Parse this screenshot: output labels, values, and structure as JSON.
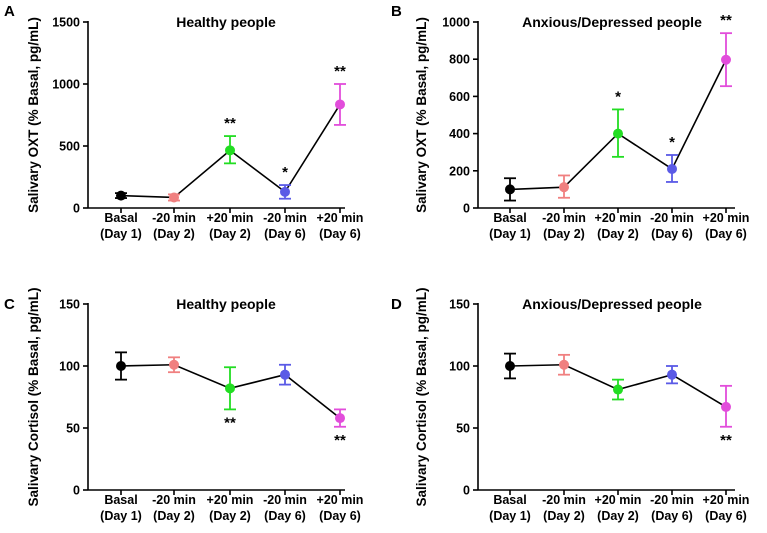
{
  "chart_data": [
    {
      "panel": "A",
      "type": "line",
      "title": "Healthy people",
      "ylabel": "Salivary OXT (% Basal, pg/mL)",
      "xlabel": "",
      "ylim": [
        0,
        1500
      ],
      "yticks": [
        0,
        500,
        1000,
        1500
      ],
      "categories": [
        [
          "Basal",
          "(Day 1)"
        ],
        [
          "-20 min",
          "(Day 2)"
        ],
        [
          "+20 min",
          "(Day 2)"
        ],
        [
          "-20 min",
          "(Day 6)"
        ],
        [
          "+20 min",
          "(Day 6)"
        ]
      ],
      "values": [
        100,
        85,
        465,
        130,
        835
      ],
      "err_low": [
        80,
        60,
        360,
        75,
        670
      ],
      "err_high": [
        120,
        110,
        580,
        185,
        1000
      ],
      "colors": [
        "#000000",
        "#f08080",
        "#22dd22",
        "#5a5ae6",
        "#e24ddb"
      ],
      "significance": [
        {
          "index": 2,
          "label": "**",
          "position": "above"
        },
        {
          "index": 3,
          "label": "*",
          "position": "above"
        },
        {
          "index": 4,
          "label": "**",
          "position": "above"
        }
      ]
    },
    {
      "panel": "B",
      "type": "line",
      "title": "Anxious/Depressed people",
      "ylabel": "Salivary OXT (% Basal, pg/mL)",
      "xlabel": "",
      "ylim": [
        0,
        1000
      ],
      "yticks": [
        0,
        200,
        400,
        600,
        800,
        1000
      ],
      "categories": [
        [
          "Basal",
          "(Day 1)"
        ],
        [
          "-20 min",
          "(Day 2)"
        ],
        [
          "+20 min",
          "(Day 2)"
        ],
        [
          "-20 min",
          "(Day 6)"
        ],
        [
          "+20 min",
          "(Day 6)"
        ]
      ],
      "values": [
        100,
        112,
        400,
        210,
        797
      ],
      "err_low": [
        40,
        55,
        275,
        140,
        655
      ],
      "err_high": [
        160,
        175,
        530,
        285,
        940
      ],
      "colors": [
        "#000000",
        "#f08080",
        "#22dd22",
        "#5a5ae6",
        "#e24ddb"
      ],
      "significance": [
        {
          "index": 2,
          "label": "*",
          "position": "above"
        },
        {
          "index": 3,
          "label": "*",
          "position": "above"
        },
        {
          "index": 4,
          "label": "**",
          "position": "above"
        }
      ]
    },
    {
      "panel": "C",
      "type": "line",
      "title": "Healthy people",
      "ylabel": "Salivary Cortisol (% Basal, pg/mL)",
      "xlabel": "",
      "ylim": [
        0,
        150
      ],
      "yticks": [
        0,
        50,
        100,
        150
      ],
      "categories": [
        [
          "Basal",
          "(Day 1)"
        ],
        [
          "-20 min",
          "(Day 2)"
        ],
        [
          "+20 min",
          "(Day 2)"
        ],
        [
          "-20 min",
          "(Day 6)"
        ],
        [
          "+20 min",
          "(Day 6)"
        ]
      ],
      "values": [
        100,
        101,
        82,
        93,
        58
      ],
      "err_low": [
        89,
        95,
        65,
        85,
        51
      ],
      "err_high": [
        111,
        107,
        99,
        101,
        65
      ],
      "colors": [
        "#000000",
        "#f08080",
        "#22dd22",
        "#5a5ae6",
        "#e24ddb"
      ],
      "significance": [
        {
          "index": 2,
          "label": "**",
          "position": "below"
        },
        {
          "index": 4,
          "label": "**",
          "position": "below"
        }
      ]
    },
    {
      "panel": "D",
      "type": "line",
      "title": "Anxious/Depressed people",
      "ylabel": "Salivary Cortisol (% Basal, pg/mL)",
      "xlabel": "",
      "ylim": [
        0,
        150
      ],
      "yticks": [
        0,
        50,
        100,
        150
      ],
      "categories": [
        [
          "Basal",
          "(Day 1)"
        ],
        [
          "-20 min",
          "(Day 2)"
        ],
        [
          "+20 min",
          "(Day 2)"
        ],
        [
          "-20 min",
          "(Day 6)"
        ],
        [
          "+20 min",
          "(Day 6)"
        ]
      ],
      "values": [
        100,
        101,
        81,
        93,
        67
      ],
      "err_low": [
        90,
        93,
        73,
        86,
        51
      ],
      "err_high": [
        110,
        109,
        89,
        100,
        84
      ],
      "colors": [
        "#000000",
        "#f08080",
        "#22dd22",
        "#5a5ae6",
        "#e24ddb"
      ],
      "significance": [
        {
          "index": 4,
          "label": "**",
          "position": "below"
        }
      ]
    }
  ]
}
